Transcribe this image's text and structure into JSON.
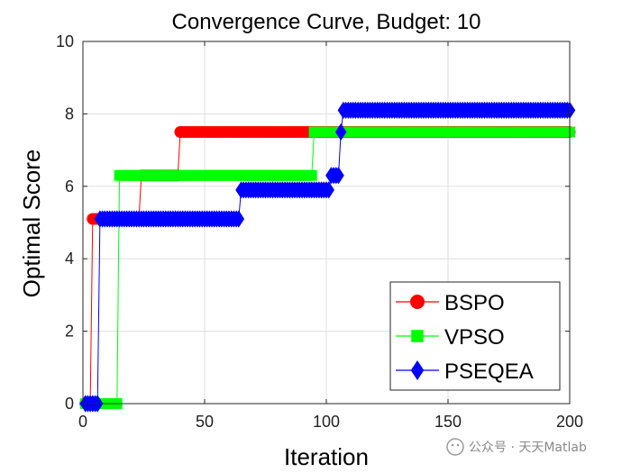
{
  "chart_data": {
    "type": "line",
    "title": "Convergence Curve, Budget: 10",
    "xlabel": "Iteration",
    "ylabel": "Optimal Score",
    "xlim": [
      0,
      200
    ],
    "ylim": [
      0,
      10
    ],
    "xticks": [
      0,
      50,
      100,
      150,
      200
    ],
    "yticks": [
      0,
      2,
      4,
      6,
      8,
      10
    ],
    "grid": true,
    "legend_position": "bottom-right",
    "series": [
      {
        "name": "BSPO",
        "color": "#ff0000",
        "marker": "circle",
        "steps": [
          {
            "start": 1,
            "end": 3,
            "value": 0
          },
          {
            "start": 4,
            "end": 23,
            "value": 5.1
          },
          {
            "start": 24,
            "end": 39,
            "value": 6.3
          },
          {
            "start": 40,
            "end": 200,
            "value": 7.5
          }
        ]
      },
      {
        "name": "VPSO",
        "color": "#00ff00",
        "marker": "square",
        "steps": [
          {
            "start": 1,
            "end": 14,
            "value": 0
          },
          {
            "start": 15,
            "end": 94,
            "value": 6.3
          },
          {
            "start": 95,
            "end": 200,
            "value": 7.5
          }
        ]
      },
      {
        "name": "PSEQEA",
        "color": "#0000ff",
        "marker": "diamond",
        "steps": [
          {
            "start": 1,
            "end": 6,
            "value": 0
          },
          {
            "start": 7,
            "end": 64,
            "value": 5.1
          },
          {
            "start": 65,
            "end": 101,
            "value": 5.9
          },
          {
            "start": 102,
            "end": 105,
            "value": 6.3
          },
          {
            "start": 106,
            "end": 106,
            "value": 7.5
          },
          {
            "start": 107,
            "end": 200,
            "value": 8.1
          }
        ]
      }
    ]
  },
  "watermark": {
    "text": "公众号 · 天天Matlab"
  }
}
